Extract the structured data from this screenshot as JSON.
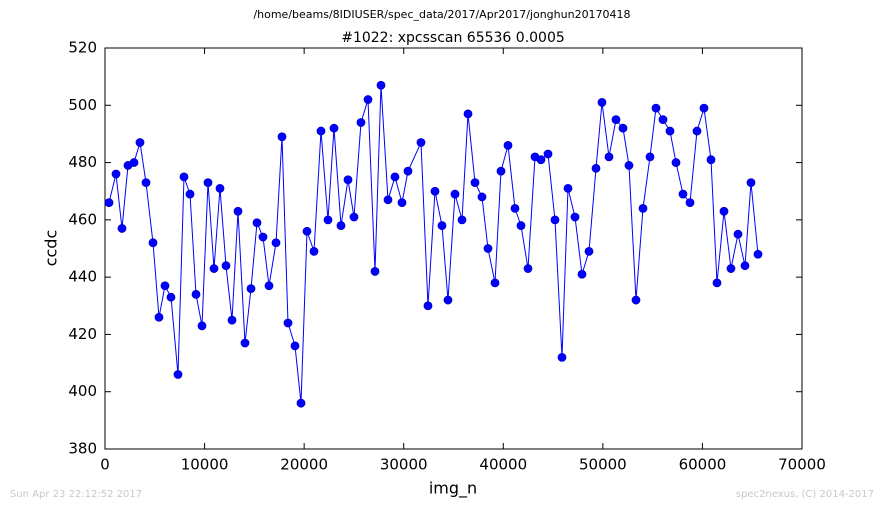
{
  "chart_data": {
    "type": "line",
    "title": "/home/beams/8IDIUSER/spec_data/2017/Apr2017/jonghun20170418",
    "subtitle": "#1022: xpcsscan 65536 0.0005",
    "xlabel": "img_n",
    "ylabel": "ccdc",
    "footer_left": "Sun Apr 23 22:12:52 2017",
    "footer_right": "spec2nexus, (C) 2014-2017",
    "xlim": [
      0,
      70000
    ],
    "xticks": [
      0,
      10000,
      20000,
      30000,
      40000,
      50000,
      60000,
      70000
    ],
    "ylim": [
      380,
      520
    ],
    "yticks": [
      380,
      400,
      420,
      440,
      460,
      480,
      500,
      520
    ],
    "grid": false,
    "x": [
      402,
      1105,
      1707,
      2310,
      2912,
      3515,
      4118,
      4821,
      5423,
      6026,
      6628,
      7331,
      7934,
      8537,
      9139,
      9742,
      10344,
      10947,
      11549,
      12152,
      12755,
      13357,
      14060,
      14663,
      15265,
      15868,
      16471,
      17174,
      17776,
      18379,
      19082,
      19684,
      20287,
      20990,
      21693,
      22396,
      22998,
      23701,
      24404,
      25007,
      25710,
      26413,
      27116,
      27718,
      28421,
      29124,
      29827,
      30430,
      31735,
      32438,
      33141,
      33844,
      34447,
      35150,
      35854,
      36456,
      37159,
      37862,
      38464,
      39167,
      39770,
      40473,
      41176,
      41779,
      42482,
      43185,
      43787,
      44490,
      45193,
      45896,
      46499,
      47202,
      47905,
      48608,
      49311,
      49913,
      50616,
      51319,
      52022,
      52625,
      53328,
      54031,
      54734,
      55336,
      56039,
      56742,
      57345,
      58048,
      58751,
      59454,
      60157,
      60860,
      61462,
      62165,
      62868,
      63571,
      64274,
      64877,
      65580
    ],
    "series": [
      {
        "color": "#0000ff",
        "marker_color": "#0000cc",
        "values": [
          466,
          476,
          457,
          479,
          480,
          487,
          473,
          452,
          426,
          437,
          433,
          406,
          475,
          469,
          434,
          423,
          473,
          443,
          471,
          444,
          425,
          463,
          417,
          436,
          459,
          454,
          437,
          452,
          489,
          424,
          416,
          396,
          456,
          449,
          491,
          460,
          492,
          458,
          474,
          461,
          494,
          502,
          442,
          507,
          467,
          475,
          466,
          477,
          487,
          430,
          470,
          458,
          432,
          469,
          460,
          497,
          473,
          468,
          450,
          438,
          477,
          486,
          464,
          458,
          443,
          482,
          481,
          483,
          460,
          412,
          471,
          461,
          441,
          449,
          478,
          501,
          482,
          495,
          492,
          479,
          432,
          464,
          482,
          499,
          495,
          491,
          480,
          469,
          466,
          491,
          499,
          481,
          438,
          463,
          443,
          455,
          444,
          473,
          448
        ]
      }
    ]
  }
}
